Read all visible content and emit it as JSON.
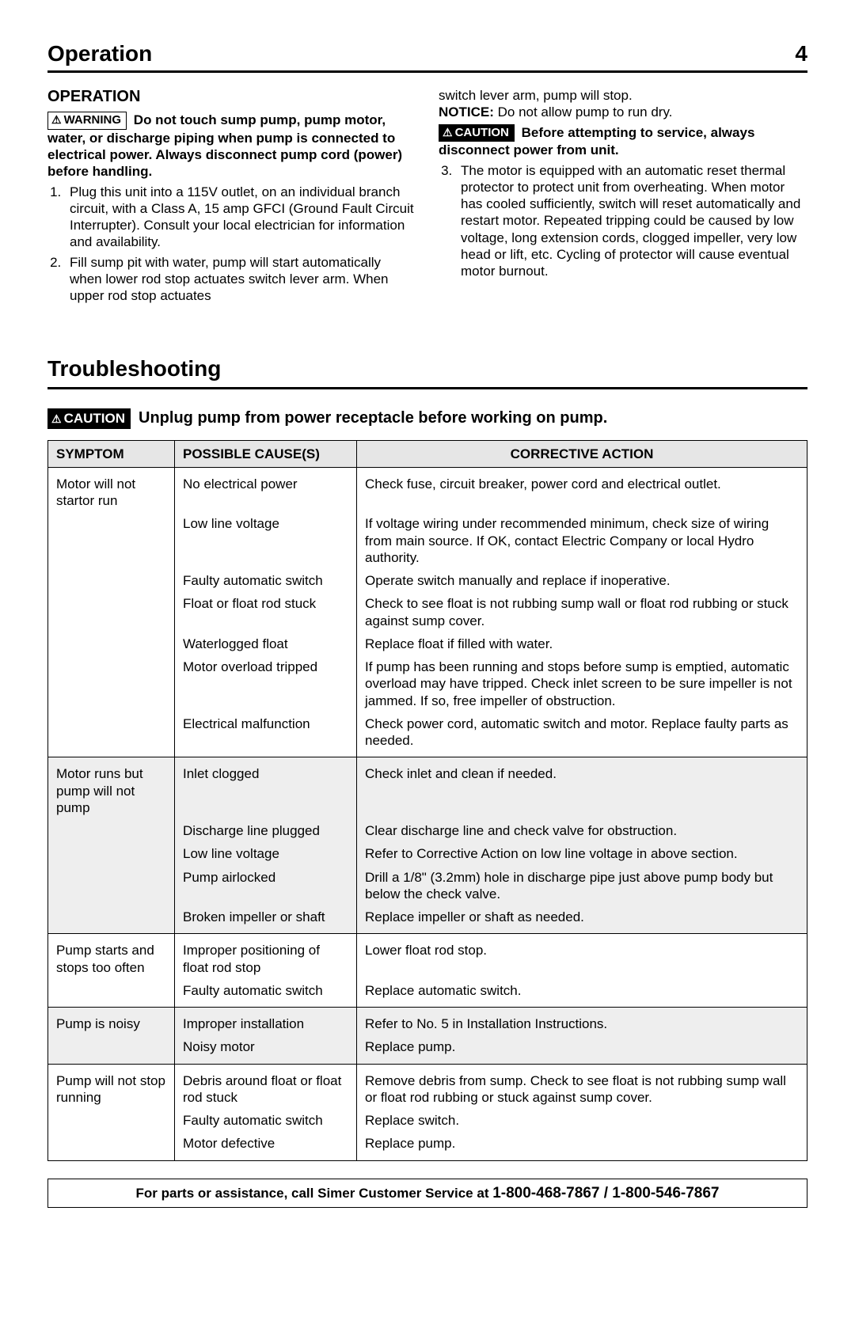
{
  "header": {
    "title": "Operation",
    "page": "4"
  },
  "operation": {
    "heading": "OPERATION",
    "warning_label": "WARNING",
    "warning_text": "Do not touch sump pump, pump motor, water, or discharge piping when pump is connected to electrical power. Always disconnect pump cord (power) before handling.",
    "list": [
      "Plug this unit into a 115V outlet, on an individual branch circuit, with a Class A, 15 amp GFCI (Ground Fault Circuit Interrupter). Consult your local electrician for information and availability.",
      "Fill sump pit with water, pump will start automatically when lower rod stop actuates switch lever arm. When upper rod stop actuates"
    ],
    "col2_top": "switch lever arm, pump will stop.",
    "notice_label": "NOTICE:",
    "notice_text": " Do not allow pump to run dry.",
    "caution_label": "CAUTION",
    "caution_text": "Before attempting to service, always disconnect power from unit.",
    "item3": "The motor is equipped with an automatic reset thermal protector to protect unit from overheating. When motor has cooled sufficiently, switch will reset automatically and restart motor. Repeated tripping could be caused by low voltage, long extension cords, clogged impeller, very low head or lift, etc. Cycling of protector will cause eventual motor burnout."
  },
  "troubleshooting": {
    "heading": "Troubleshooting",
    "caution_label": "CAUTION",
    "caution_text": "Unplug pump from power receptacle before working on pump.",
    "columns": [
      "SYMPTOM",
      "POSSIBLE CAUSE(S)",
      "CORRECTIVE ACTION"
    ],
    "groups": [
      {
        "shade": false,
        "symptom": "Motor will not startor run",
        "rows": [
          [
            "No electrical power",
            "Check fuse, circuit breaker, power cord and electrical outlet."
          ],
          [
            "Low line voltage",
            "If voltage wiring under recommended minimum, check size of wiring from main source. If OK, contact Electric Company or local Hydro authority."
          ],
          [
            "Faulty automatic switch",
            "Operate switch manually and replace if inoperative."
          ],
          [
            "Float or float rod stuck",
            "Check to see float is not rubbing sump wall or float rod rubbing or stuck against sump cover."
          ],
          [
            "Waterlogged float",
            "Replace float if filled with water."
          ],
          [
            "Motor overload tripped",
            "If pump has been running and stops before sump is emptied, automatic overload may have tripped. Check inlet screen to be sure impeller is not jammed. If so, free impeller of obstruction."
          ],
          [
            "Electrical malfunction",
            "Check power cord, automatic switch and motor. Replace faulty parts as needed."
          ]
        ]
      },
      {
        "shade": true,
        "symptom": "Motor runs but pump will not pump",
        "rows": [
          [
            "Inlet clogged",
            "Check inlet and clean if needed."
          ],
          [
            "Discharge line plugged",
            "Clear discharge line and check valve for obstruction."
          ],
          [
            "Low line voltage",
            "Refer to Corrective Action on low line voltage in above section."
          ],
          [
            "Pump airlocked",
            "Drill a 1/8\" (3.2mm) hole in discharge pipe just above pump body but below the check valve."
          ],
          [
            "Broken impeller or shaft",
            "Replace impeller or shaft as needed."
          ]
        ]
      },
      {
        "shade": false,
        "symptom": "Pump starts and stops too often",
        "rows": [
          [
            "Improper positioning of float rod stop",
            "Lower float rod stop."
          ],
          [
            "Faulty automatic switch",
            "Replace automatic switch."
          ]
        ]
      },
      {
        "shade": true,
        "symptom": "Pump is noisy",
        "rows": [
          [
            "Improper installation",
            "Refer to No. 5  in Installation Instructions."
          ],
          [
            "Noisy motor",
            "Replace pump."
          ]
        ]
      },
      {
        "shade": false,
        "symptom": "Pump will not stop running",
        "rows": [
          [
            "Debris around float or float rod stuck",
            "Remove debris from sump. Check to see float is not rubbing sump wall or float rod rubbing or stuck against sump cover."
          ],
          [
            "Faulty automatic switch",
            "Replace switch."
          ],
          [
            "Motor defective",
            "Replace pump."
          ]
        ]
      }
    ]
  },
  "footer": {
    "lead": "For parts or assistance, call Simer Customer Service at ",
    "phones": "1-800-468-7867 / 1-800-546-7867"
  }
}
